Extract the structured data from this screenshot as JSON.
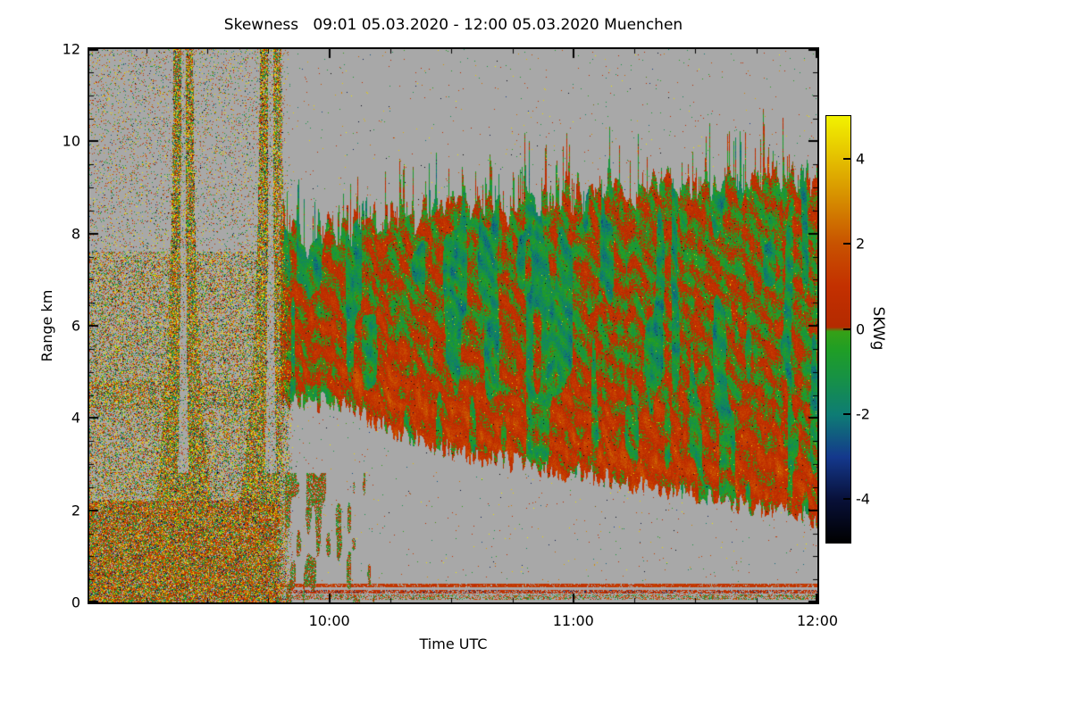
{
  "chart_data": {
    "type": "heatmap",
    "title": "Skewness   09:01 05.03.2020 - 12:00 05.03.2020 Muenchen",
    "xlabel": "Time UTC",
    "ylabel": "Range km",
    "time_start": "09:01 05.03.2020",
    "time_end": "12:00 05.03.2020",
    "station": "Muenchen",
    "xlim_minutes": [
      0,
      179
    ],
    "x_ticks": [
      {
        "label": "10:00",
        "minutes": 59
      },
      {
        "label": "11:00",
        "minutes": 119
      },
      {
        "label": "12:00",
        "minutes": 179
      }
    ],
    "x_minor_tick_step_min": 15,
    "ylim": [
      0,
      12
    ],
    "y_ticks": [
      0,
      2,
      4,
      6,
      8,
      10,
      12
    ],
    "y_minor_tick_step_km": 0.5,
    "colorbar": {
      "label": "SKWg",
      "vmin": -5,
      "vmax": 5,
      "ticks": [
        4,
        2,
        0,
        -2,
        -4
      ],
      "stops": [
        [
          -5,
          "#000000"
        ],
        [
          -4,
          "#081038"
        ],
        [
          -3,
          "#14388c"
        ],
        [
          -2,
          "#0e7c74"
        ],
        [
          -1.2,
          "#169048"
        ],
        [
          -0.5,
          "#1f9e26"
        ],
        [
          -0.05,
          "#35a016"
        ],
        [
          0.05,
          "#b42a00"
        ],
        [
          1,
          "#c33000"
        ],
        [
          2,
          "#c85200"
        ],
        [
          3,
          "#d58a00"
        ],
        [
          4,
          "#e4bf00"
        ],
        [
          5,
          "#f2f200"
        ]
      ]
    },
    "no_data_color": "#a8a8a8",
    "regions": {
      "precip": {
        "t_end_min": 50,
        "fade_start_min": 46,
        "density_low": 0.42,
        "density_high": 0.1,
        "boundary_km": 7.6,
        "ground_top_km": 2.2,
        "ground_density": 0.85,
        "band_km": [
          4.2,
          4.8
        ],
        "band_density": 0.62
      },
      "plumes": [
        {
          "center_min": 23,
          "w0_min": 2.2,
          "w1_min": 9.5,
          "hscale_km": 3.2,
          "density": 0.8
        },
        {
          "center_min": 44.5,
          "w0_min": 2.4,
          "w1_min": 10.5,
          "hscale_km": 3.2,
          "density": 0.8
        }
      ],
      "cloud": {
        "t_start_min": 47,
        "top_profile": [
          [
            47,
            7.9
          ],
          [
            60,
            8.1
          ],
          [
            90,
            8.5
          ],
          [
            120,
            8.8
          ],
          [
            150,
            9.1
          ],
          [
            179,
            9.3
          ]
        ],
        "bottom_profile": [
          [
            47,
            4.4
          ],
          [
            62,
            4.3
          ],
          [
            78,
            3.6
          ],
          [
            92,
            3.2
          ],
          [
            120,
            2.8
          ],
          [
            150,
            2.3
          ],
          [
            179,
            1.8
          ]
        ],
        "mean_skw": 0.35,
        "red_band": {
          "t_start_min": 62,
          "depth_km": 1.8,
          "boost": 0.95
        },
        "green_patch_threshold": 0.66
      },
      "low_blobs": {
        "t_range_min": [
          48,
          70
        ],
        "max_km": 2.8,
        "threshold": 0.6
      },
      "surface_lines": [
        {
          "km": [
            0.32,
            0.4
          ],
          "density": 0.85,
          "value_range": [
            0.4,
            1.8
          ]
        },
        {
          "km": [
            0.2,
            0.27
          ],
          "density": 0.7,
          "value_range": [
            0.1,
            1.4
          ]
        },
        {
          "km": [
            0.05,
            0.18
          ],
          "density": 0.45,
          "value_range": [
            -1.6,
            2.6
          ]
        }
      ],
      "sparse_speck_density": 0.006
    }
  }
}
